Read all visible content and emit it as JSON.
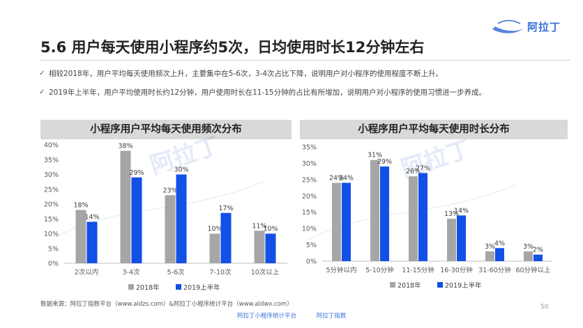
{
  "slide": {
    "title": "5.6 用户每天使用小程序约5次，日均使用时长12分钟左右",
    "logo_text": "阿拉丁",
    "bullets": [
      "相较2018年，用户平均每天使用频次上升，主要集中在5-6次，3-4次占比下降，说明用户对小程序的使用程度不断上升。",
      "2019年上半年，用户平均使用时长约12分钟，用户使用时长在11-15分钟的占比有所增加，说明用户对小程序的使用习惯进一步养成。"
    ],
    "watermark": "阿拉丁",
    "source": "数据来源：阿拉丁指数平台（www.aldzs.com）&阿拉丁小程序统计平台（www.aldwx.com）",
    "page_number": "50",
    "footer_logos": [
      "阿拉丁小程序统计平台",
      "阿拉丁指数"
    ]
  },
  "colors": {
    "series_2018": "#a6a6a6",
    "series_2019": "#1250e6",
    "panel_header": "#d9d9d9"
  },
  "chart_data": [
    {
      "type": "bar",
      "title": "小程序用户平均每天使用频次分布",
      "categories": [
        "2次以内",
        "3-4次",
        "5-6次",
        "7-10次",
        "10次以上"
      ],
      "series": [
        {
          "name": "2018年",
          "values": [
            18,
            38,
            23,
            10,
            11
          ],
          "labels": [
            "18%",
            "38%",
            "23%",
            "10%",
            "11%"
          ]
        },
        {
          "name": "2019上半年",
          "values": [
            14,
            29,
            30,
            17,
            10
          ],
          "labels": [
            "14%",
            "29%",
            "30%",
            "17%",
            "10%"
          ]
        }
      ],
      "ylim": [
        0,
        40
      ],
      "yticks": [
        "0%",
        "5%",
        "10%",
        "15%",
        "20%",
        "25%",
        "30%",
        "35%",
        "40%"
      ],
      "legend": "bottom",
      "grid": false
    },
    {
      "type": "bar",
      "title": "小程序用户平均每天使用时长分布",
      "categories": [
        "5分钟以内",
        "5-10分钟",
        "11-15分钟",
        "16-30分钟",
        "31-60分钟",
        "60分钟以上"
      ],
      "series": [
        {
          "name": "2018年",
          "values": [
            24,
            31,
            26,
            13,
            3,
            3
          ],
          "labels": [
            "24%",
            "31%",
            "26%",
            "13%",
            "3%",
            "3%"
          ]
        },
        {
          "name": "2019上半年",
          "values": [
            24,
            29,
            27,
            14,
            4,
            2
          ],
          "labels": [
            "24%",
            "29%",
            "27%",
            "14%",
            "4%",
            "2%"
          ]
        }
      ],
      "ylim": [
        0,
        35
      ],
      "yticks": [
        "0%",
        "5%",
        "10%",
        "15%",
        "20%",
        "25%",
        "30%",
        "35%"
      ],
      "legend": "bottom",
      "grid": false
    }
  ]
}
